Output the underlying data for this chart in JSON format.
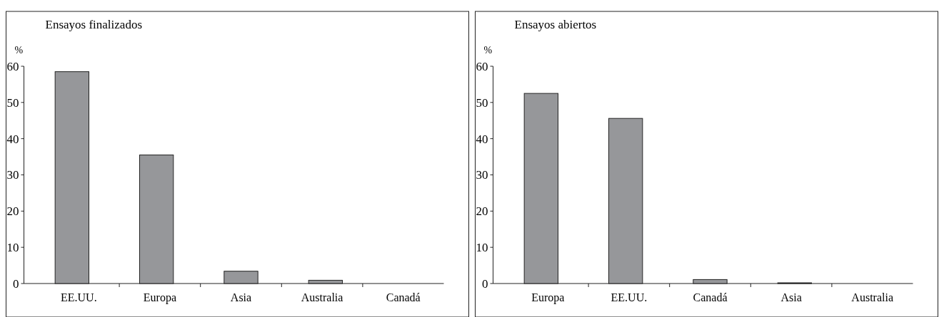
{
  "chart_data": [
    {
      "type": "bar",
      "title": "Ensayos finalizados",
      "ylabel": "%",
      "categories": [
        "EE.UU.",
        "Europa",
        "Asia",
        "Australia",
        "Canadá"
      ],
      "values": [
        58.5,
        35.5,
        3.4,
        0.9,
        0
      ],
      "color": "#96979a",
      "ylim": [
        0,
        60
      ],
      "yticks": [
        0,
        10,
        20,
        30,
        40,
        50,
        60
      ],
      "grid": false
    },
    {
      "type": "bar",
      "title": "Ensayos abiertos",
      "ylabel": "%",
      "categories": [
        "Europa",
        "EE.UU.",
        "Canadá",
        "Asia",
        "Australia"
      ],
      "values": [
        52.5,
        45.6,
        1.1,
        0.2,
        0
      ],
      "color": "#96979a",
      "ylim": [
        0,
        60
      ],
      "yticks": [
        0,
        10,
        20,
        30,
        40,
        50,
        60
      ],
      "grid": false
    }
  ]
}
